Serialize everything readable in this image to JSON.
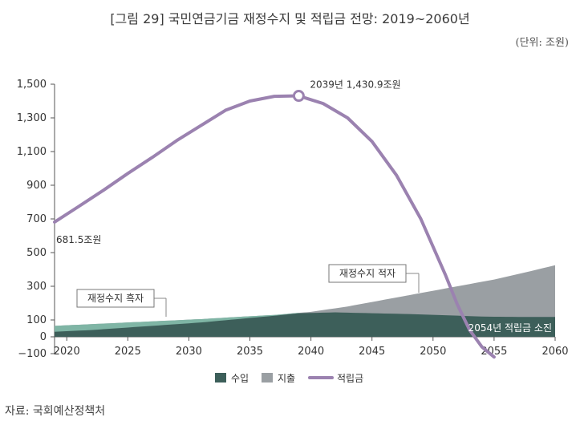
{
  "title": "[그림 29] 국민연금기금 재정수지 및 적립금 전망: 2019~2060년",
  "unit": "(단위: 조원)",
  "source": "자료: 국회예산정책처",
  "colors": {
    "income": "#3d5f5a",
    "surplus": "#7fb5a5",
    "expenditure": "#9a9fa3",
    "fund": "#9b82b0"
  },
  "chart_data": {
    "type": "area",
    "title": "국민연금기금 재정수지 및 적립금 전망: 2019~2060년",
    "ylabel": "조원",
    "xlim": [
      2019,
      2060
    ],
    "ylim": [
      -100,
      1500
    ],
    "y_ticks": [
      "1,500",
      "1,300",
      "1,100",
      "900",
      "700",
      "500",
      "300",
      "100",
      "0",
      "−100"
    ],
    "y_tick_values": [
      1500,
      1300,
      1100,
      900,
      700,
      500,
      300,
      100,
      0,
      -100
    ],
    "x_ticks": [
      "2020",
      "2025",
      "2030",
      "2035",
      "2040",
      "2045",
      "2050",
      "2055",
      "2060"
    ],
    "x_tick_values": [
      2020,
      2025,
      2030,
      2035,
      2040,
      2045,
      2050,
      2055,
      2060
    ],
    "series": [
      {
        "name": "수입",
        "type": "area",
        "x": [
          2019,
          2022,
          2025,
          2028,
          2031,
          2034,
          2037,
          2039,
          2042,
          2045,
          2048,
          2051,
          2054,
          2057,
          2060
        ],
        "values": [
          30,
          40,
          55,
          70,
          85,
          105,
          125,
          140,
          145,
          140,
          135,
          128,
          120,
          118,
          118
        ]
      },
      {
        "name": "지출",
        "type": "area",
        "x": [
          2019,
          2022,
          2025,
          2028,
          2031,
          2034,
          2037,
          2040,
          2043,
          2046,
          2049,
          2052,
          2055,
          2058,
          2060
        ],
        "values": [
          65,
          75,
          85,
          95,
          105,
          118,
          130,
          148,
          180,
          220,
          260,
          300,
          340,
          390,
          425
        ]
      },
      {
        "name": "적립금",
        "type": "line",
        "x": [
          2019,
          2021,
          2023,
          2025,
          2027,
          2029,
          2031,
          2033,
          2035,
          2037,
          2039,
          2041,
          2043,
          2045,
          2047,
          2049,
          2051,
          2052,
          2053,
          2054,
          2055
        ],
        "values": [
          681.5,
          775,
          870,
          970,
          1065,
          1165,
          1255,
          1345,
          1400,
          1428,
          1430.9,
          1385,
          1300,
          1160,
          960,
          700,
          370,
          190,
          40,
          -60,
          -120
        ]
      }
    ],
    "legend": [
      "수입",
      "지출",
      "적립금"
    ],
    "legend_position": "bottom-center",
    "annotations": [
      {
        "text": "2039년 1,430.9조원",
        "x": 2039,
        "y": 1430.9,
        "marker": true
      },
      {
        "text": "681.5조원",
        "x": 2019,
        "y": 681.5
      },
      {
        "text": "재정수지 흑자",
        "x": 2027,
        "y": 125,
        "boxed": true
      },
      {
        "text": "재정수지 적자",
        "x": 2048,
        "y": 270,
        "boxed": true
      },
      {
        "text": "2054년 적립금 소진",
        "x": 2054,
        "y": 60
      }
    ]
  }
}
